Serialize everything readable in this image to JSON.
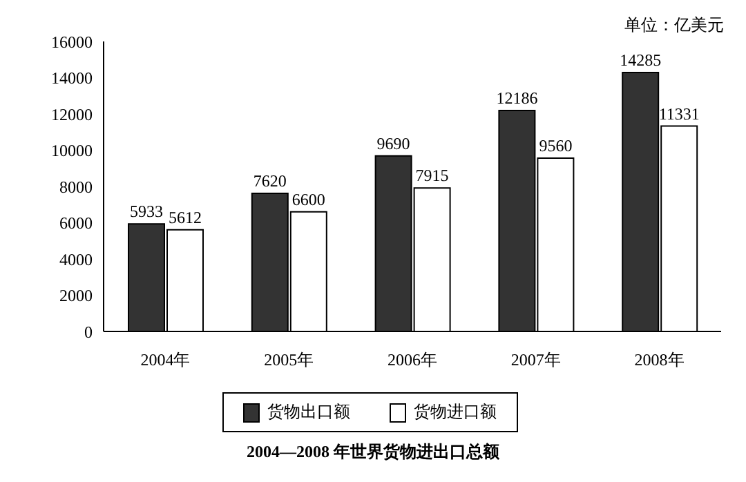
{
  "chart_data": {
    "type": "bar",
    "title": "2004—2008 年世界货物进出口总额",
    "annotations": [
      "单位：亿美元"
    ],
    "categories": [
      "2004年",
      "2005年",
      "2006年",
      "2007年",
      "2008年"
    ],
    "series": [
      {
        "name": "货物出口额",
        "color": "#333333",
        "values": [
          5933,
          7620,
          9690,
          12186,
          14285
        ]
      },
      {
        "name": "货物进口额",
        "color": "#ffffff",
        "values": [
          5612,
          6600,
          7915,
          9560,
          11331
        ]
      }
    ],
    "ylim": [
      0,
      16000
    ],
    "yticks": [
      0,
      2000,
      4000,
      6000,
      8000,
      10000,
      12000,
      14000,
      16000
    ],
    "data_labels": true,
    "grid": false,
    "legend": "bottom"
  }
}
